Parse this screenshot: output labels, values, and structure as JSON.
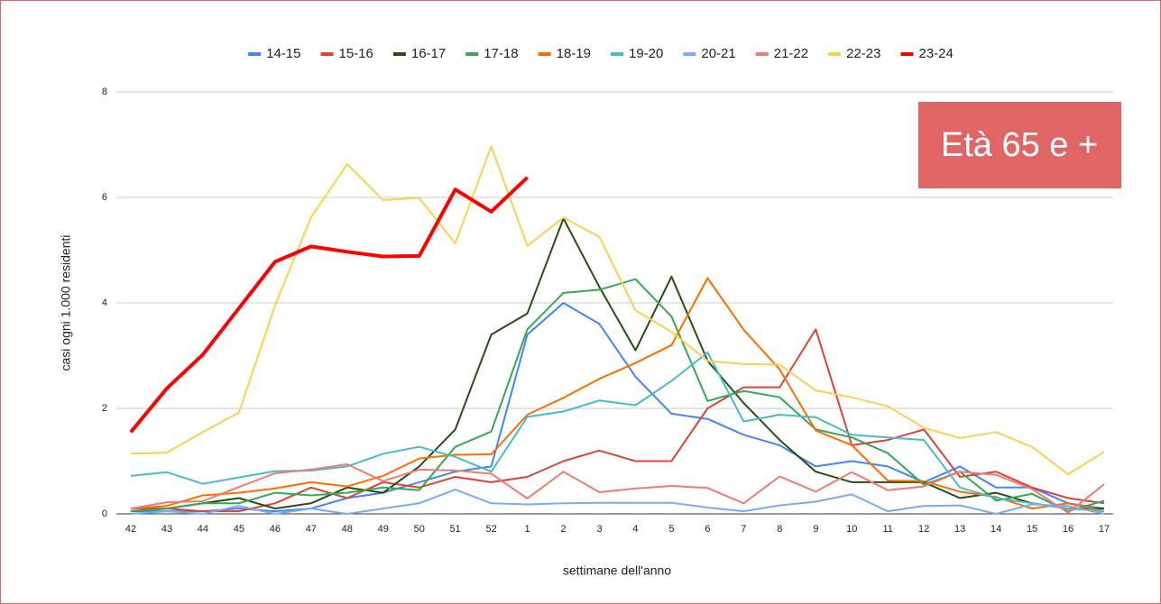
{
  "chart_data": {
    "type": "line",
    "y_label": "casi ogni 1.000 residenti",
    "x_label": "settimane dell'anno",
    "annotation": "Età 65 e +",
    "annotation_color": "#e06666",
    "categories": [
      "42",
      "43",
      "44",
      "45",
      "46",
      "47",
      "48",
      "49",
      "50",
      "51",
      "52",
      "1",
      "2",
      "3",
      "4",
      "5",
      "6",
      "7",
      "8",
      "9",
      "10",
      "11",
      "12",
      "13",
      "14",
      "15",
      "16",
      "17"
    ],
    "ylim": [
      0,
      8
    ],
    "yticks": [
      0,
      2,
      4,
      6,
      8
    ],
    "grid": true,
    "legend": "top",
    "series": [
      {
        "name": "14-15",
        "color": "#4285f4",
        "width": 2,
        "values": [
          0.05,
          0.05,
          0.05,
          0.1,
          0.05,
          0.1,
          0.3,
          0.4,
          0.6,
          0.8,
          0.9,
          3.4,
          4.0,
          3.6,
          2.6,
          1.9,
          1.8,
          1.5,
          1.3,
          0.9,
          1.0,
          0.9,
          0.6,
          0.9,
          0.5,
          0.5,
          0.2,
          0.1
        ]
      },
      {
        "name": "15-16",
        "color": "#db4437",
        "width": 2,
        "values": [
          0.1,
          0.1,
          0.05,
          0.05,
          0.2,
          0.5,
          0.3,
          0.6,
          0.5,
          0.7,
          0.6,
          0.7,
          1.0,
          1.2,
          1.0,
          1.0,
          2.0,
          2.4,
          2.4,
          3.5,
          1.3,
          1.4,
          1.6,
          0.7,
          0.8,
          0.5,
          0.3,
          0.2
        ]
      },
      {
        "name": "16-17",
        "color": "#274e13",
        "width": 2,
        "values": [
          0.05,
          0.1,
          0.2,
          0.3,
          0.1,
          0.2,
          0.5,
          0.4,
          0.9,
          1.6,
          3.4,
          3.8,
          5.6,
          4.3,
          3.1,
          4.5,
          2.9,
          2.1,
          1.4,
          0.8,
          0.6,
          0.6,
          0.6,
          0.3,
          0.4,
          0.2,
          0.1,
          0.1
        ]
      },
      {
        "name": "17-18",
        "color": "#34a853",
        "width": 2,
        "values": [
          0.05,
          0.1,
          0.2,
          0.2,
          0.4,
          0.35,
          0.4,
          0.5,
          0.45,
          1.27,
          1.56,
          3.5,
          4.19,
          4.25,
          4.45,
          3.74,
          2.14,
          2.33,
          2.21,
          1.6,
          1.45,
          1.15,
          0.55,
          0.8,
          0.25,
          0.38,
          0.05,
          0.25
        ]
      },
      {
        "name": "18-19",
        "color": "#ff6d01",
        "width": 2,
        "values": [
          0.1,
          0.15,
          0.35,
          0.4,
          0.48,
          0.6,
          0.52,
          0.72,
          1.05,
          1.12,
          1.13,
          1.88,
          2.2,
          2.56,
          2.86,
          3.2,
          4.47,
          3.49,
          2.74,
          1.58,
          1.3,
          0.63,
          0.62,
          0.42,
          0.32,
          0.1,
          0.2,
          0.05
        ]
      },
      {
        "name": "19-20",
        "color": "#46bdc6",
        "width": 2,
        "values": [
          0.72,
          0.79,
          0.57,
          0.69,
          0.81,
          0.82,
          0.9,
          1.14,
          1.27,
          1.08,
          0.8,
          1.84,
          1.94,
          2.15,
          2.06,
          2.52,
          3.06,
          1.75,
          1.88,
          1.83,
          1.5,
          1.45,
          1.4,
          0.5,
          0.3,
          0.2,
          0.1,
          0.05
        ]
      },
      {
        "name": "20-21",
        "color": "#7baaf7",
        "width": 2,
        "values": [
          0.0,
          0.05,
          0.0,
          0.15,
          0.0,
          0.1,
          0.0,
          0.1,
          0.2,
          0.46,
          0.2,
          0.18,
          0.2,
          0.21,
          0.21,
          0.21,
          0.12,
          0.05,
          0.16,
          0.23,
          0.37,
          0.05,
          0.15,
          0.16,
          0.0,
          0.18,
          0.15,
          0.0
        ]
      },
      {
        "name": "21-22",
        "color": "#f07b72",
        "width": 2,
        "values": [
          0.1,
          0.22,
          0.24,
          0.51,
          0.77,
          0.84,
          0.94,
          0.62,
          0.84,
          0.82,
          0.76,
          0.29,
          0.8,
          0.41,
          0.48,
          0.53,
          0.49,
          0.2,
          0.71,
          0.42,
          0.79,
          0.45,
          0.52,
          0.8,
          0.74,
          0.47,
          0.02,
          0.56
        ]
      },
      {
        "name": "22-23",
        "color": "#fcd04f",
        "width": 2,
        "values": [
          1.14,
          1.16,
          1.55,
          1.92,
          3.95,
          5.62,
          6.63,
          5.95,
          5.99,
          5.13,
          6.97,
          5.08,
          5.62,
          5.25,
          3.86,
          3.45,
          2.9,
          2.84,
          2.83,
          2.34,
          2.21,
          2.04,
          1.63,
          1.44,
          1.55,
          1.27,
          0.75,
          1.18
        ]
      },
      {
        "name": "23-24",
        "color": "#ff0000",
        "width": 4,
        "values": [
          1.55,
          2.38,
          3.02,
          3.9,
          4.78,
          5.07,
          4.97,
          4.88,
          4.89,
          6.15,
          5.73,
          6.38,
          null,
          null,
          null,
          null,
          null,
          null,
          null,
          null,
          null,
          null,
          null,
          null,
          null,
          null,
          null,
          null
        ]
      }
    ]
  }
}
